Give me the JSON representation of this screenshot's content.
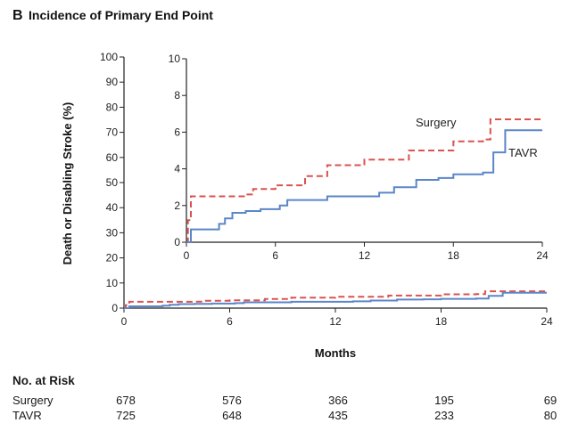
{
  "figure": {
    "panel_letter": "B",
    "title": "Incidence of Primary End Point"
  },
  "chart_data": [
    {
      "type": "line",
      "name": "main",
      "xlabel": "Months",
      "ylabel": "Death or Disabling Stroke (%)",
      "xlim": [
        0,
        24
      ],
      "ylim": [
        0,
        100
      ],
      "xticks": [
        0,
        6,
        12,
        18,
        24
      ],
      "yticks": [
        0,
        10,
        20,
        30,
        40,
        50,
        60,
        70,
        80,
        90,
        100
      ],
      "grid": false,
      "series": [
        {
          "name": "Surgery",
          "color": "#d9534f",
          "style": "dashed",
          "x": [
            0,
            0.1,
            0.3,
            1.5,
            4,
            4.5,
            6,
            8,
            9.5,
            12,
            15,
            18,
            20,
            20.5,
            24
          ],
          "y": [
            0,
            1.2,
            2.5,
            2.5,
            2.6,
            2.9,
            3.1,
            3.6,
            4.2,
            4.5,
            5.0,
            5.5,
            5.6,
            6.7,
            6.7
          ]
        },
        {
          "name": "TAVR",
          "color": "#5b86c9",
          "style": "solid",
          "x": [
            0,
            0.3,
            1.7,
            2.2,
            2.6,
            3.1,
            4,
            5,
            6,
            6.3,
            6.8,
            8,
            9.5,
            12,
            13,
            14,
            15.5,
            17,
            18,
            20,
            20.5,
            20.7,
            21.5,
            24
          ],
          "y": [
            0,
            0.7,
            0.7,
            1.0,
            1.3,
            1.6,
            1.7,
            1.8,
            1.8,
            2.0,
            2.3,
            2.3,
            2.5,
            2.5,
            2.7,
            3.0,
            3.4,
            3.5,
            3.7,
            3.8,
            3.8,
            4.9,
            6.1,
            6.1
          ]
        }
      ]
    },
    {
      "type": "line",
      "name": "inset",
      "xlim": [
        0,
        24
      ],
      "ylim": [
        0,
        10
      ],
      "xticks": [
        0,
        6,
        12,
        18,
        24
      ],
      "yticks": [
        0,
        2,
        4,
        6,
        8,
        10
      ],
      "grid": false,
      "legend": [
        "Surgery",
        "TAVR"
      ],
      "legend_placement": "right, next to lines"
    }
  ],
  "risk_table": {
    "title": "No. at Risk",
    "rows": [
      {
        "label": "Surgery",
        "values": [
          "678",
          "576",
          "366",
          "195",
          "69"
        ]
      },
      {
        "label": "TAVR",
        "values": [
          "725",
          "648",
          "435",
          "233",
          "80"
        ]
      }
    ]
  }
}
